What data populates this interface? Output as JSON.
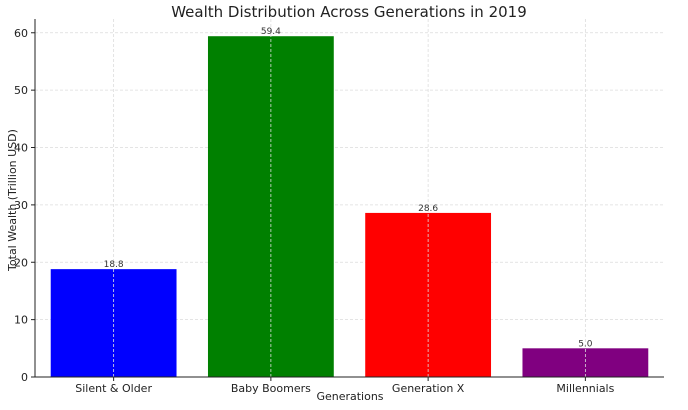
{
  "chart_data": {
    "type": "bar",
    "title": "Wealth Distribution Across Generations in 2019",
    "xlabel": "Generations",
    "ylabel": "Total Wealth (Trillion USD)",
    "categories": [
      "Silent & Older",
      "Baby Boomers",
      "Generation X",
      "Millennials"
    ],
    "values": [
      18.8,
      59.4,
      28.6,
      5.0
    ],
    "value_labels": [
      "18.8",
      "59.4",
      "28.6",
      "5.0"
    ],
    "colors": [
      "#0000ff",
      "#008000",
      "#ff0000",
      "#800080"
    ],
    "ylim": [
      0,
      62.4
    ],
    "yticks": [
      0,
      10,
      20,
      30,
      40,
      50,
      60
    ],
    "grid": true,
    "legend": "none"
  }
}
